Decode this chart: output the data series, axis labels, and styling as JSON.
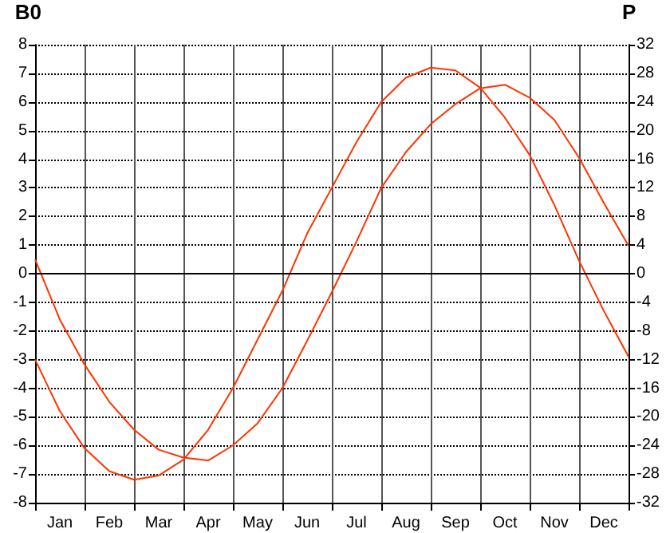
{
  "chart_data": {
    "type": "line",
    "ylabel": "B0",
    "y2label": "P",
    "categories": [
      null,
      "Jan",
      null,
      "Feb",
      null,
      "Mar",
      null,
      "Apr",
      null,
      "May",
      null,
      "Jun",
      null,
      "Jul",
      null,
      "Aug",
      null,
      "Sep",
      null,
      "Oct",
      null,
      "Nov",
      null,
      "Dec",
      null
    ],
    "series": [
      {
        "color": "#ff3300",
        "values": [
          -3.0,
          -4.8,
          -6.1,
          -6.9,
          -7.2,
          -7.05,
          -6.5,
          -5.45,
          -4.0,
          -2.3,
          -0.6,
          1.4,
          3.0,
          4.6,
          6.0,
          6.85,
          7.2,
          7.1,
          6.5,
          5.45,
          4.15,
          2.4,
          0.45,
          -1.3,
          -2.9
        ]
      },
      {
        "color": "#ff3300",
        "axis": "y2",
        "values": [
          2.0,
          -6.4,
          -12.7,
          -17.9,
          -21.8,
          -24.6,
          -25.7,
          -26.1,
          -24.0,
          -20.9,
          -16.0,
          -9.4,
          -2.6,
          4.5,
          12.0,
          17.0,
          20.9,
          23.7,
          25.9,
          26.4,
          24.6,
          21.5,
          16.2,
          9.9,
          3.9
        ]
      }
    ],
    "ylim": [
      -8,
      8
    ],
    "yticks": [
      -8,
      -7,
      -6,
      -5,
      -4,
      -3,
      -2,
      -1,
      0,
      1,
      2,
      3,
      4,
      5,
      6,
      7,
      8
    ],
    "y2lim": [
      -32,
      32
    ],
    "y2ticks": [
      -32,
      -28,
      -24,
      -20,
      -16,
      -12,
      -8,
      -4,
      0,
      4,
      8,
      12,
      16,
      20,
      24,
      28,
      32
    ],
    "ref_lines": [
      {
        "axis": "y",
        "value": 0,
        "color": "#000000"
      }
    ],
    "grid": true,
    "marker": "none",
    "line_style": "solid"
  }
}
